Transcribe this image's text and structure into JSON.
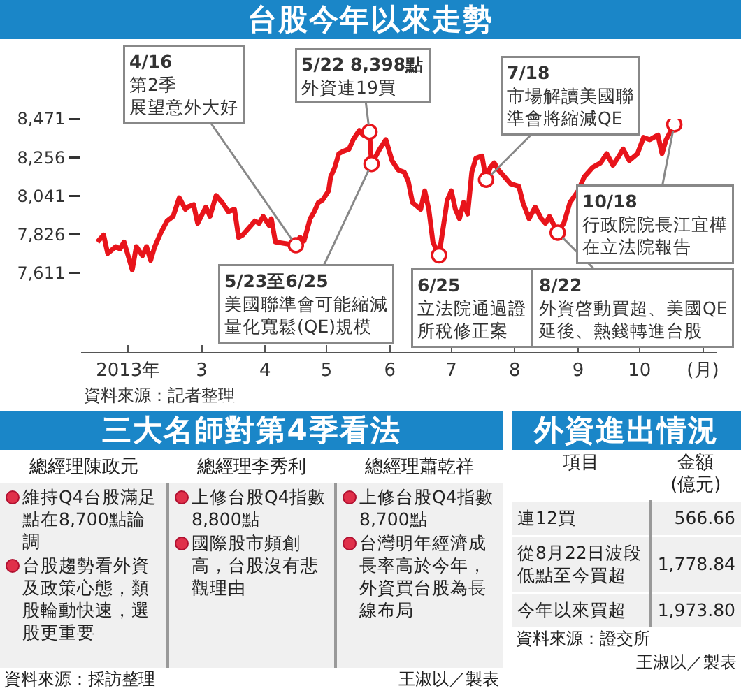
{
  "chart_data": [
    {
      "type": "line",
      "title": "台股今年以來走勢",
      "xlim": [
        "2013-01-01",
        "2013-11-08"
      ],
      "xticks": [
        {
          "value": "2013-01-24",
          "label": "2013年"
        },
        {
          "value": "2013-03-01",
          "label": "3"
        },
        {
          "value": "2013-04-01",
          "label": "4"
        },
        {
          "value": "2013-05-01",
          "label": "5"
        },
        {
          "value": "2013-06-01",
          "label": "6"
        },
        {
          "value": "2013-07-01",
          "label": "7"
        },
        {
          "value": "2013-08-01",
          "label": "8"
        },
        {
          "value": "2013-09-01",
          "label": "9"
        },
        {
          "value": "2013-10-01",
          "label": "10"
        },
        {
          "value": "2013-11-01",
          "label": "(月)"
        }
      ],
      "ylim": [
        7170,
        8471
      ],
      "yticks": [
        {
          "value": 7611,
          "label": "7,611"
        },
        {
          "value": 7826,
          "label": "7,826"
        },
        {
          "value": 8041,
          "label": "8,041"
        },
        {
          "value": 8256,
          "label": "8,256"
        },
        {
          "value": 8471,
          "label": "8,471"
        }
      ],
      "series": [
        {
          "color": "#e8141b",
          "x": [
            "2013-01-09",
            "2013-01-12",
            "2013-01-14",
            "2013-01-18",
            "2013-01-20",
            "2013-01-22",
            "2013-01-26",
            "2013-01-28",
            "2013-01-31",
            "2013-02-02",
            "2013-02-04",
            "2013-02-06",
            "2013-02-09",
            "2013-02-12",
            "2013-02-15",
            "2013-02-18",
            "2013-02-21",
            "2013-02-22",
            "2013-02-25",
            "2013-02-27",
            "2013-03-03",
            "2013-03-05",
            "2013-03-08",
            "2013-03-11",
            "2013-03-14",
            "2013-03-17",
            "2013-03-19",
            "2013-03-21",
            "2013-03-24",
            "2013-03-27",
            "2013-03-29",
            "2013-03-31",
            "2013-04-03",
            "2013-04-04",
            "2013-04-06",
            "2013-04-16",
            "2013-04-18",
            "2013-04-20",
            "2013-04-23",
            "2013-04-25",
            "2013-04-27",
            "2013-04-29",
            "2013-05-02",
            "2013-05-03",
            "2013-05-05",
            "2013-05-07",
            "2013-05-09",
            "2013-05-12",
            "2013-05-14",
            "2013-05-17",
            "2013-05-19",
            "2013-05-22",
            "2013-05-23",
            "2013-05-27",
            "2013-05-30",
            "2013-06-02",
            "2013-06-05",
            "2013-06-08",
            "2013-06-10",
            "2013-06-12",
            "2013-06-16",
            "2013-06-18",
            "2013-06-20",
            "2013-06-22",
            "2013-06-25",
            "2013-06-27",
            "2013-06-29",
            "2013-07-01",
            "2013-07-03",
            "2013-07-05",
            "2013-07-07",
            "2013-07-09",
            "2013-07-11",
            "2013-07-13",
            "2013-07-16",
            "2013-07-18",
            "2013-07-20",
            "2013-07-22",
            "2013-07-24",
            "2013-07-27",
            "2013-07-30",
            "2013-08-03",
            "2013-08-05",
            "2013-08-08",
            "2013-08-11",
            "2013-08-14",
            "2013-08-16",
            "2013-08-18",
            "2013-08-22",
            "2013-08-25",
            "2013-08-28",
            "2013-09-01",
            "2013-09-04",
            "2013-09-08",
            "2013-09-12",
            "2013-09-15",
            "2013-09-18",
            "2013-09-21",
            "2013-09-23",
            "2013-09-26",
            "2013-09-30",
            "2013-10-03",
            "2013-10-06",
            "2013-10-10",
            "2013-10-12",
            "2013-10-14",
            "2013-10-18"
          ],
          "values": [
            7784,
            7823,
            7720,
            7758,
            7745,
            7784,
            7629,
            7758,
            7707,
            7758,
            7681,
            7758,
            7836,
            7901,
            7927,
            8030,
            7966,
            7979,
            7992,
            7888,
            7979,
            7927,
            8043,
            8004,
            7953,
            7966,
            7810,
            7823,
            7862,
            7901,
            7888,
            7927,
            7875,
            7914,
            7784,
            7766,
            7810,
            7790,
            7914,
            7953,
            8004,
            8017,
            8069,
            8147,
            8199,
            8276,
            8289,
            8302,
            8354,
            8406,
            8380,
            8398,
            8219,
            8302,
            8354,
            8238,
            8186,
            8173,
            8121,
            8004,
            7966,
            8069,
            7966,
            7784,
            7710,
            7862,
            8017,
            8069,
            7966,
            7914,
            8004,
            7940,
            8173,
            8251,
            8263,
            8131,
            8199,
            8225,
            8186,
            8147,
            8108,
            8095,
            8004,
            7914,
            7979,
            7914,
            7888,
            7927,
            7836,
            7888,
            8004,
            8069,
            8147,
            8199,
            8225,
            8276,
            8212,
            8263,
            8302,
            8238,
            8276,
            8367,
            8354,
            8380,
            8276,
            8354,
            8440
          ]
        }
      ],
      "annotations": [
        {
          "text": "4/16第2季展望意外大好",
          "x": "2013-04-16",
          "y": 7766
        },
        {
          "text": "5/22 8,398點外資連19買",
          "x": "2013-05-22",
          "y": 8398
        },
        {
          "text": "5/23至6/25美國聯準會可能縮減量化寬鬆(QE)規模",
          "x": "2013-05-23",
          "y": 8219
        },
        {
          "text": "6/25立法院通過證所稅修正案",
          "x": "2013-06-25",
          "y": 7710
        },
        {
          "text": "7/18市場解讀美國聯準會將縮減QE",
          "x": "2013-07-18",
          "y": 8131
        },
        {
          "text": "8/22外資啓動買超、美國QE延後、熱錢轉進台股",
          "x": "2013-08-22",
          "y": 7836
        },
        {
          "text": "10/18行政院院長江宜樺在立法院報告",
          "x": "2013-10-18",
          "y": 8440
        },
        "資料來源：記者整理"
      ]
    },
    {
      "type": "other",
      "title": "三大名師對第4季看法",
      "categories": [
        "總經理陳政元",
        "總經理李秀利",
        "總經理蕭乾祥"
      ],
      "annotations": [
        "維持Q4台股滿足點在8,700點論調",
        "台股趨勢看外資及政策心態，類股輪動快速，選股更重要",
        "上修台股Q4指數8,800點",
        "國際股市頻創高，台股沒有悲觀理由",
        "上修台股Q4指數8,700點",
        "台灣明年經濟成長率高於今年，外資買台股為長線布局",
        "資料來源：採訪整理",
        "王淑以／製表"
      ]
    },
    {
      "type": "other",
      "title": "外資進出情況",
      "xlabel": "項目",
      "ylabel": "金額\n(億元)",
      "categories": [
        "連12買",
        "從8月22日波段低點至今買超",
        "今年以來買超"
      ],
      "annotations": [
        "566.66",
        "1,778.84",
        "1,973.80",
        "資料來源：證交所",
        "王淑以／製表"
      ]
    }
  ]
}
